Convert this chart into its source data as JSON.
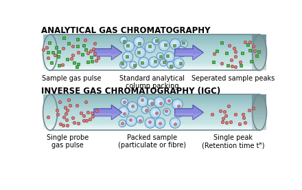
{
  "bg_color": "#ffffff",
  "title1": "ANALYTICAL GAS CHROMATOGRAPHY",
  "title2": "INVERSE GAS CHROMATOGRAPHY (IGC)",
  "tube1_labels": [
    "Sample gas pulse",
    "Standard analytical\ncolumn packing",
    "Seperated sample peaks"
  ],
  "tube2_labels": [
    "Single probe\ngas pulse",
    "Packed sample\n(particulate or fibre)",
    "Single peak\n(Retention time tᴿ)"
  ],
  "tube_fill_top": "#d8eeee",
  "tube_fill_mid": "#b8dde0",
  "tube_fill_bot": "#90c4c8",
  "tube_edge": "#708890",
  "tube_highlight": "#f0fafa",
  "tube_shadow": "#80b0b8",
  "sphere_color": "#b0d8f0",
  "sphere_edge": "#6090b8",
  "sphere_highlight": "#e8f4fc",
  "dot_green": "#48b848",
  "dot_green_edge": "#207020",
  "dot_pink": "#d87878",
  "dot_pink_edge": "#904040",
  "arrow_fill": "#8888dd",
  "arrow_edge": "#4444aa",
  "label_fontsize": 7.0,
  "title_fontsize": 8.5
}
